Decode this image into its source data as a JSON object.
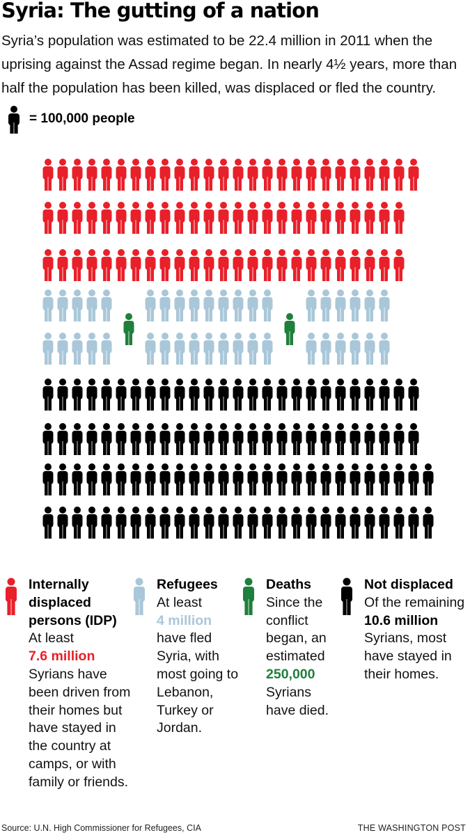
{
  "header": {
    "title": "Syria: The gutting of a nation",
    "subtitle": "Syria’s population was estimated to be 22.4 million in 2011 when the uprising against the Assad regime began. In nearly 4½ years, more than half the population has been killed, was displaced or fled the country."
  },
  "key": {
    "icon": "person-icon",
    "label": "= 100,000 people"
  },
  "colors": {
    "idp": "#e8202a",
    "refugees": "#a9c7d9",
    "deaths": "#1f7f3c",
    "not_displaced": "#000000"
  },
  "chart_data": {
    "type": "pictogram",
    "unit": "100,000 people",
    "categories": [
      "Internally displaced persons (IDP)",
      "Refugees",
      "Deaths",
      "Not displaced"
    ],
    "values": [
      7600000,
      4000000,
      250000,
      10600000
    ],
    "icon_counts": [
      76,
      40,
      2,
      106
    ],
    "total_population": 22400000
  },
  "legend": [
    {
      "key": "idp",
      "title": "Internally displaced persons (IDP)",
      "before": "At least",
      "value": "7.6 million",
      "after": "Syrians have been driven from their homes but have stayed in the country at camps, or with family or friends."
    },
    {
      "key": "refugees",
      "title": "Refugees",
      "before": "At least",
      "value": "4 million",
      "after": "have fled Syria, with most going to Lebanon, Turkey or Jordan."
    },
    {
      "key": "deaths",
      "title": "Deaths",
      "before": "Since the conflict began, an estimated",
      "value": "250,000",
      "after": "Syrians have died."
    },
    {
      "key": "not_displaced",
      "title": "Not displaced",
      "before": "Of the remaining",
      "value": "10.6 million",
      "after": "Syrians, most have stayed in their homes."
    }
  ],
  "footer": {
    "source": "Source: U.N. High Commissioner for Refugees, CIA",
    "credit": "THE WASHINGTON POST"
  }
}
